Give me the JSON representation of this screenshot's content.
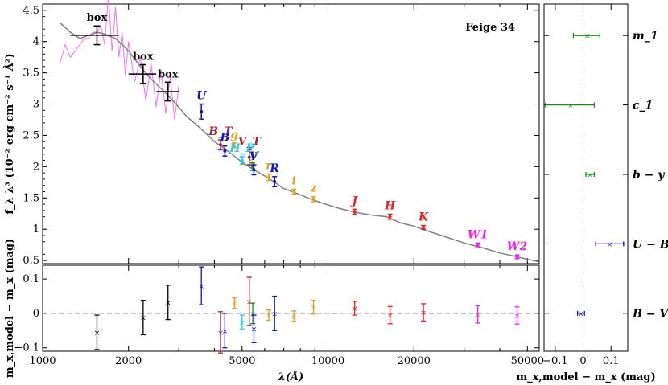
{
  "chart_data": [
    {
      "type": "line",
      "panel": "sed",
      "title": "Feige 34",
      "xlabel": "λ(Å)",
      "ylabel": "f_λ λ³ (10⁻² erg cm⁻² s⁻¹ Å²)",
      "xscale": "log",
      "xlim": [
        1000,
        55000
      ],
      "ylim": [
        0.45,
        4.6
      ],
      "yticks": [
        "0.5",
        "1",
        "1.5",
        "2",
        "2.5",
        "3",
        "3.5",
        "4",
        "4.5"
      ],
      "xticks": [
        "1000",
        "2000",
        "5000",
        "10000",
        "20000",
        "50000"
      ],
      "colors": {
        "model": "#808080",
        "spectrum": "#ee66ee"
      },
      "model_curve": {
        "x": [
          1150,
          1250,
          1350,
          1450,
          1550,
          1650,
          1800,
          2000,
          2200,
          2400,
          2600,
          2800,
          3000,
          3200,
          3500,
          3700,
          4000,
          4300,
          4600,
          5000,
          5500,
          6000,
          6500,
          7000,
          7700,
          8500,
          9500,
          11000,
          12500,
          14000,
          16000,
          18000,
          20000,
          22000,
          25000,
          30000,
          35000,
          40000,
          45000,
          50000,
          55000
        ],
        "y": [
          4.3,
          4.15,
          4.05,
          4.1,
          4.15,
          4.12,
          4.05,
          3.85,
          3.6,
          3.4,
          3.25,
          3.1,
          2.95,
          2.8,
          2.65,
          2.55,
          2.4,
          2.3,
          2.2,
          2.07,
          1.95,
          1.85,
          1.75,
          1.65,
          1.58,
          1.5,
          1.42,
          1.33,
          1.27,
          1.23,
          1.2,
          1.1,
          1.05,
          0.98,
          0.9,
          0.78,
          0.7,
          0.62,
          0.57,
          0.52,
          0.48
        ]
      },
      "spectrum": {
        "x": [
          1150,
          1200,
          1250,
          1300,
          1350,
          1400,
          1450,
          1500,
          1550,
          1600,
          1650,
          1700,
          1750,
          1800,
          1850,
          1900,
          1950,
          2000,
          2100,
          2200,
          2300,
          2400,
          2500,
          2600,
          2700,
          2800,
          2900,
          3000
        ],
        "y": [
          3.9,
          3.7,
          4.0,
          3.6,
          4.2,
          3.8,
          4.3,
          3.9,
          4.4,
          4.0,
          4.2,
          4.5,
          4.1,
          4.3,
          4.0,
          3.9,
          3.7,
          3.75,
          3.6,
          3.5,
          3.3,
          3.4,
          3.2,
          3.3,
          3.1,
          3.2,
          3.0,
          3.05
        ]
      },
      "box_points": [
        {
          "label": "box",
          "x": 1550,
          "xerr": [
            1250,
            1850
          ],
          "y": 4.1,
          "yerr": 0.15
        },
        {
          "label": "box",
          "x": 2250,
          "xerr": [
            2000,
            2500
          ],
          "y": 3.48,
          "yerr": 0.15
        },
        {
          "label": "box",
          "x": 2750,
          "xerr": [
            2500,
            3000
          ],
          "y": 3.2,
          "yerr": 0.15
        }
      ],
      "photometry": [
        {
          "label": "U",
          "x": 3600,
          "y": 2.88,
          "yerr": 0.12,
          "color": "#1010cc"
        },
        {
          "label": "B_T",
          "x": 4200,
          "y": 2.35,
          "yerr": 0.08,
          "color": "#a02828"
        },
        {
          "label": "B",
          "x": 4350,
          "y": 2.25,
          "yerr": 0.08,
          "color": "#1010cc"
        },
        {
          "label": "g",
          "x": 4700,
          "y": 2.33,
          "yerr": 0.05,
          "color": "#daa520"
        },
        {
          "label": "V_T",
          "x": 5300,
          "y": 2.15,
          "yerr": 0.12,
          "color": "#a02828"
        },
        {
          "label": "H_P",
          "x": 5000,
          "y": 2.1,
          "yerr": 0.06,
          "color": "#22ccee"
        },
        {
          "label": "y",
          "x": 5450,
          "y": 2.0,
          "yerr": 0.06,
          "color": "#1a8a1a"
        },
        {
          "label": "V",
          "x": 5500,
          "y": 1.95,
          "yerr": 0.08,
          "color": "#1010cc"
        },
        {
          "label": "r",
          "x": 6200,
          "y": 1.83,
          "yerr": 0.05,
          "color": "#daa520"
        },
        {
          "label": "R",
          "x": 6500,
          "y": 1.76,
          "yerr": 0.08,
          "color": "#1010cc"
        },
        {
          "label": "i",
          "x": 7600,
          "y": 1.6,
          "yerr": 0.04,
          "color": "#daa520"
        },
        {
          "label": "z",
          "x": 8900,
          "y": 1.48,
          "yerr": 0.04,
          "color": "#daa520"
        },
        {
          "label": "J",
          "x": 12400,
          "y": 1.28,
          "yerr": 0.04,
          "color": "#e82020"
        },
        {
          "label": "H",
          "x": 16500,
          "y": 1.2,
          "yerr": 0.04,
          "color": "#e82020"
        },
        {
          "label": "K",
          "x": 21600,
          "y": 1.03,
          "yerr": 0.03,
          "color": "#e82020"
        },
        {
          "label": "W1",
          "x": 33500,
          "y": 0.75,
          "yerr": 0.03,
          "color": "#ee22ee"
        },
        {
          "label": "W2",
          "x": 46000,
          "y": 0.56,
          "yerr": 0.03,
          "color": "#ee22ee"
        }
      ]
    },
    {
      "type": "scatter",
      "panel": "residuals",
      "xlabel": "λ(Å)",
      "ylabel": "m_x,model − m_x (mag)",
      "xscale": "log",
      "xlim": [
        1000,
        55000
      ],
      "ylim": [
        -0.11,
        0.14
      ],
      "yticks": [
        "−0.1",
        "0",
        "0.1"
      ],
      "points": [
        {
          "x": 1550,
          "y": -0.055,
          "err": 0.05,
          "color": "#000000"
        },
        {
          "x": 2250,
          "y": -0.012,
          "err": 0.05,
          "color": "#000000"
        },
        {
          "x": 2750,
          "y": 0.032,
          "err": 0.05,
          "color": "#000000"
        },
        {
          "x": 3600,
          "y": 0.08,
          "err": 0.055,
          "color": "#1010cc"
        },
        {
          "x": 4200,
          "y": -0.055,
          "err": 0.06,
          "color": "#a02828"
        },
        {
          "x": 4350,
          "y": -0.05,
          "err": 0.05,
          "color": "#1010cc"
        },
        {
          "x": 4700,
          "y": 0.03,
          "err": 0.015,
          "color": "#daa520"
        },
        {
          "x": 5000,
          "y": -0.025,
          "err": 0.02,
          "color": "#22ccee"
        },
        {
          "x": 5300,
          "y": 0.035,
          "err": 0.07,
          "color": "#a02828"
        },
        {
          "x": 5450,
          "y": 0.0,
          "err": 0.03,
          "color": "#1a8a1a"
        },
        {
          "x": 5500,
          "y": -0.045,
          "err": 0.04,
          "color": "#1010cc"
        },
        {
          "x": 6200,
          "y": -0.005,
          "err": 0.015,
          "color": "#daa520"
        },
        {
          "x": 6500,
          "y": 0.0,
          "err": 0.05,
          "color": "#1010cc"
        },
        {
          "x": 7600,
          "y": -0.008,
          "err": 0.015,
          "color": "#daa520"
        },
        {
          "x": 8900,
          "y": 0.018,
          "err": 0.02,
          "color": "#daa520"
        },
        {
          "x": 12400,
          "y": 0.015,
          "err": 0.02,
          "color": "#e82020"
        },
        {
          "x": 16500,
          "y": -0.005,
          "err": 0.025,
          "color": "#e82020"
        },
        {
          "x": 21600,
          "y": 0.003,
          "err": 0.025,
          "color": "#e82020"
        },
        {
          "x": 33500,
          "y": -0.003,
          "err": 0.025,
          "color": "#ee22ee"
        },
        {
          "x": 46000,
          "y": -0.006,
          "err": 0.025,
          "color": "#ee22ee"
        }
      ]
    },
    {
      "type": "scatter",
      "panel": "colors",
      "xlabel": "m_x,model − m_x (mag)",
      "xlim": [
        -0.14,
        0.16
      ],
      "xticks": [
        "−0.1",
        "0",
        "0.1"
      ],
      "points": [
        {
          "label": "m_1",
          "x": 0.015,
          "xlow": -0.035,
          "xhigh": 0.06,
          "color": "#1a8a1a"
        },
        {
          "label": "c_1",
          "x": -0.045,
          "xlow": -0.135,
          "xhigh": 0.04,
          "color": "#1a8a1a"
        },
        {
          "label": "b − y",
          "x": 0.025,
          "xlow": 0.01,
          "xhigh": 0.04,
          "color": "#1a8a1a"
        },
        {
          "label": "U − B",
          "x": 0.095,
          "xlow": 0.045,
          "xhigh": 0.145,
          "color": "#1010cc"
        },
        {
          "label": "B − V",
          "x": -0.008,
          "xlow": -0.02,
          "xhigh": 0.005,
          "color": "#1010cc"
        }
      ]
    }
  ]
}
